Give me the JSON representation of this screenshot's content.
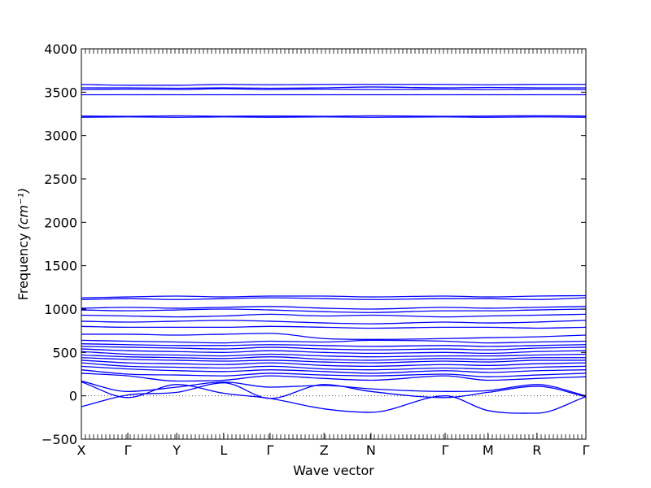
{
  "chart_data": {
    "type": "line",
    "title": "",
    "xlabel": "Wave vector",
    "ylabel": "Frequency",
    "ylabel_unit": "(cm⁻¹)",
    "ylim": [
      -500,
      4000
    ],
    "yticks": [
      -500,
      0,
      500,
      1000,
      1500,
      2000,
      2500,
      3000,
      3500,
      4000
    ],
    "xlim": [
      0,
      1
    ],
    "high_symmetry_points": [
      {
        "label": "X",
        "x": 0.0
      },
      {
        "label": "Γ",
        "x": 0.092
      },
      {
        "label": "Y",
        "x": 0.189
      },
      {
        "label": "L",
        "x": 0.282
      },
      {
        "label": "Γ",
        "x": 0.374
      },
      {
        "label": "Z",
        "x": 0.481
      },
      {
        "label": "N",
        "x": 0.574
      },
      {
        "label": "Γ",
        "x": 0.721
      },
      {
        "label": "M",
        "x": 0.806
      },
      {
        "label": "R",
        "x": 0.903
      },
      {
        "label": "Γ",
        "x": 1.0
      }
    ],
    "line_color": "#0000ff",
    "zero_line": true,
    "series": [
      {
        "x": [
          0,
          0.092,
          0.189,
          0.282,
          0.374,
          0.481,
          0.574,
          0.721,
          0.806,
          0.903,
          1.0
        ],
        "values": [
          -125,
          10,
          40,
          150,
          -30,
          130,
          50,
          -20,
          40,
          110,
          -10
        ]
      },
      {
        "x": [
          0,
          0.092,
          0.189,
          0.282,
          0.374,
          0.481,
          0.574,
          0.721,
          0.806,
          0.903,
          1.0
        ],
        "values": [
          160,
          -20,
          130,
          30,
          -30,
          -150,
          -190,
          0,
          -170,
          -200,
          -10
        ]
      },
      {
        "x": [
          0,
          0.092,
          0.189,
          0.282,
          0.374,
          0.481,
          0.574,
          0.721,
          0.806,
          0.903,
          1.0
        ],
        "values": [
          170,
          50,
          100,
          160,
          100,
          120,
          80,
          50,
          60,
          130,
          0
        ]
      },
      {
        "x": [
          0,
          0.092,
          0.189,
          0.282,
          0.374,
          0.481,
          0.574,
          0.721,
          0.806,
          0.903,
          1.0
        ],
        "values": [
          260,
          230,
          170,
          180,
          230,
          200,
          180,
          230,
          180,
          200,
          220
        ]
      },
      {
        "x": [
          0,
          0.092,
          0.189,
          0.282,
          0.374,
          0.481,
          0.574,
          0.721,
          0.806,
          0.903,
          1.0
        ],
        "values": [
          300,
          250,
          240,
          230,
          260,
          240,
          230,
          250,
          220,
          240,
          260
        ]
      },
      {
        "x": [
          0,
          0.092,
          0.189,
          0.282,
          0.374,
          0.481,
          0.574,
          0.721,
          0.806,
          0.903,
          1.0
        ],
        "values": [
          340,
          310,
          290,
          280,
          300,
          280,
          260,
          290,
          270,
          290,
          300
        ]
      },
      {
        "x": [
          0,
          0.092,
          0.189,
          0.282,
          0.374,
          0.481,
          0.574,
          0.721,
          0.806,
          0.903,
          1.0
        ],
        "values": [
          380,
          340,
          330,
          320,
          340,
          310,
          300,
          320,
          310,
          330,
          340
        ]
      },
      {
        "x": [
          0,
          0.092,
          0.189,
          0.282,
          0.374,
          0.481,
          0.574,
          0.721,
          0.806,
          0.903,
          1.0
        ],
        "values": [
          410,
          380,
          370,
          360,
          380,
          350,
          340,
          360,
          350,
          370,
          380
        ]
      },
      {
        "x": [
          0,
          0.092,
          0.189,
          0.282,
          0.374,
          0.481,
          0.574,
          0.721,
          0.806,
          0.903,
          1.0
        ],
        "values": [
          440,
          420,
          410,
          400,
          410,
          390,
          380,
          400,
          390,
          410,
          410
        ]
      },
      {
        "x": [
          0,
          0.092,
          0.189,
          0.282,
          0.374,
          0.481,
          0.574,
          0.721,
          0.806,
          0.903,
          1.0
        ],
        "values": [
          470,
          450,
          440,
          430,
          450,
          420,
          410,
          430,
          420,
          440,
          440
        ]
      },
      {
        "x": [
          0,
          0.092,
          0.189,
          0.282,
          0.374,
          0.481,
          0.574,
          0.721,
          0.806,
          0.903,
          1.0
        ],
        "values": [
          510,
          480,
          470,
          460,
          480,
          460,
          450,
          460,
          460,
          470,
          480
        ]
      },
      {
        "x": [
          0,
          0.092,
          0.189,
          0.282,
          0.374,
          0.481,
          0.574,
          0.721,
          0.806,
          0.903,
          1.0
        ],
        "values": [
          540,
          520,
          510,
          500,
          520,
          500,
          490,
          500,
          490,
          510,
          520
        ]
      },
      {
        "x": [
          0,
          0.092,
          0.189,
          0.282,
          0.374,
          0.481,
          0.574,
          0.721,
          0.806,
          0.903,
          1.0
        ],
        "values": [
          570,
          560,
          550,
          540,
          560,
          540,
          530,
          540,
          530,
          550,
          560
        ]
      },
      {
        "x": [
          0,
          0.092,
          0.189,
          0.282,
          0.374,
          0.481,
          0.574,
          0.721,
          0.806,
          0.903,
          1.0
        ],
        "values": [
          600,
          590,
          580,
          580,
          590,
          580,
          570,
          580,
          570,
          580,
          590
        ]
      },
      {
        "x": [
          0,
          0.092,
          0.189,
          0.282,
          0.374,
          0.481,
          0.574,
          0.721,
          0.806,
          0.903,
          1.0
        ],
        "values": [
          640,
          630,
          620,
          610,
          630,
          620,
          640,
          630,
          610,
          620,
          630
        ]
      },
      {
        "x": [
          0,
          0.092,
          0.189,
          0.282,
          0.374,
          0.481,
          0.574,
          0.721,
          0.806,
          0.903,
          1.0
        ],
        "values": [
          710,
          710,
          700,
          710,
          720,
          660,
          650,
          660,
          670,
          680,
          700
        ]
      },
      {
        "x": [
          0,
          0.092,
          0.189,
          0.282,
          0.374,
          0.481,
          0.574,
          0.721,
          0.806,
          0.903,
          1.0
        ],
        "values": [
          800,
          790,
          790,
          790,
          800,
          790,
          780,
          790,
          790,
          780,
          790
        ]
      },
      {
        "x": [
          0,
          0.092,
          0.189,
          0.282,
          0.374,
          0.481,
          0.574,
          0.721,
          0.806,
          0.903,
          1.0
        ],
        "values": [
          860,
          850,
          860,
          870,
          860,
          840,
          830,
          850,
          840,
          850,
          870
        ]
      },
      {
        "x": [
          0,
          0.092,
          0.189,
          0.282,
          0.374,
          0.481,
          0.574,
          0.721,
          0.806,
          0.903,
          1.0
        ],
        "values": [
          930,
          920,
          910,
          920,
          940,
          920,
          930,
          910,
          920,
          930,
          940
        ]
      },
      {
        "x": [
          0,
          0.092,
          0.189,
          0.282,
          0.374,
          0.481,
          0.574,
          0.721,
          0.806,
          0.903,
          1.0
        ],
        "values": [
          990,
          980,
          990,
          1000,
          990,
          970,
          960,
          980,
          980,
          990,
          1000
        ]
      },
      {
        "x": [
          0,
          0.092,
          0.189,
          0.282,
          0.374,
          0.481,
          0.574,
          0.721,
          0.806,
          0.903,
          1.0
        ],
        "values": [
          1010,
          1020,
          1010,
          1020,
          1030,
          1010,
          1000,
          1020,
          1010,
          1020,
          1030
        ]
      },
      {
        "x": [
          0,
          0.092,
          0.189,
          0.282,
          0.374,
          0.481,
          0.574,
          0.721,
          0.806,
          0.903,
          1.0
        ],
        "values": [
          1110,
          1120,
          1110,
          1120,
          1130,
          1120,
          1110,
          1120,
          1120,
          1110,
          1130
        ]
      },
      {
        "x": [
          0,
          0.092,
          0.189,
          0.282,
          0.374,
          0.481,
          0.574,
          0.721,
          0.806,
          0.903,
          1.0
        ],
        "values": [
          1130,
          1140,
          1150,
          1140,
          1150,
          1150,
          1140,
          1150,
          1140,
          1150,
          1155
        ]
      },
      {
        "x": [
          0,
          0.092,
          0.189,
          0.282,
          0.374,
          0.481,
          0.574,
          0.721,
          0.806,
          0.903,
          1.0
        ],
        "values": [
          3210,
          3215,
          3210,
          3215,
          3210,
          3215,
          3210,
          3215,
          3210,
          3215,
          3210
        ]
      },
      {
        "x": [
          0,
          0.092,
          0.189,
          0.282,
          0.374,
          0.481,
          0.574,
          0.721,
          0.806,
          0.903,
          1.0
        ],
        "values": [
          3225,
          3222,
          3228,
          3222,
          3225,
          3222,
          3228,
          3222,
          3225,
          3228,
          3225
        ]
      },
      {
        "x": [
          0,
          0.092,
          0.189,
          0.282,
          0.374,
          0.481,
          0.574,
          0.721,
          0.806,
          0.903,
          1.0
        ],
        "values": [
          3470,
          3470,
          3470,
          3470,
          3470,
          3470,
          3470,
          3470,
          3470,
          3470,
          3470
        ]
      },
      {
        "x": [
          0,
          0.092,
          0.189,
          0.282,
          0.374,
          0.481,
          0.574,
          0.721,
          0.806,
          0.903,
          1.0
        ],
        "values": [
          3530,
          3535,
          3530,
          3540,
          3530,
          3535,
          3530,
          3535,
          3530,
          3535,
          3530
        ]
      },
      {
        "x": [
          0,
          0.092,
          0.189,
          0.282,
          0.374,
          0.481,
          0.574,
          0.721,
          0.806,
          0.903,
          1.0
        ],
        "values": [
          3550,
          3550,
          3545,
          3550,
          3545,
          3550,
          3560,
          3550,
          3555,
          3550,
          3550
        ]
      },
      {
        "x": [
          0,
          0.092,
          0.189,
          0.282,
          0.374,
          0.481,
          0.574,
          0.721,
          0.806,
          0.903,
          1.0
        ],
        "values": [
          3590,
          3580,
          3580,
          3590,
          3585,
          3590,
          3590,
          3590,
          3585,
          3590,
          3590
        ]
      }
    ]
  }
}
